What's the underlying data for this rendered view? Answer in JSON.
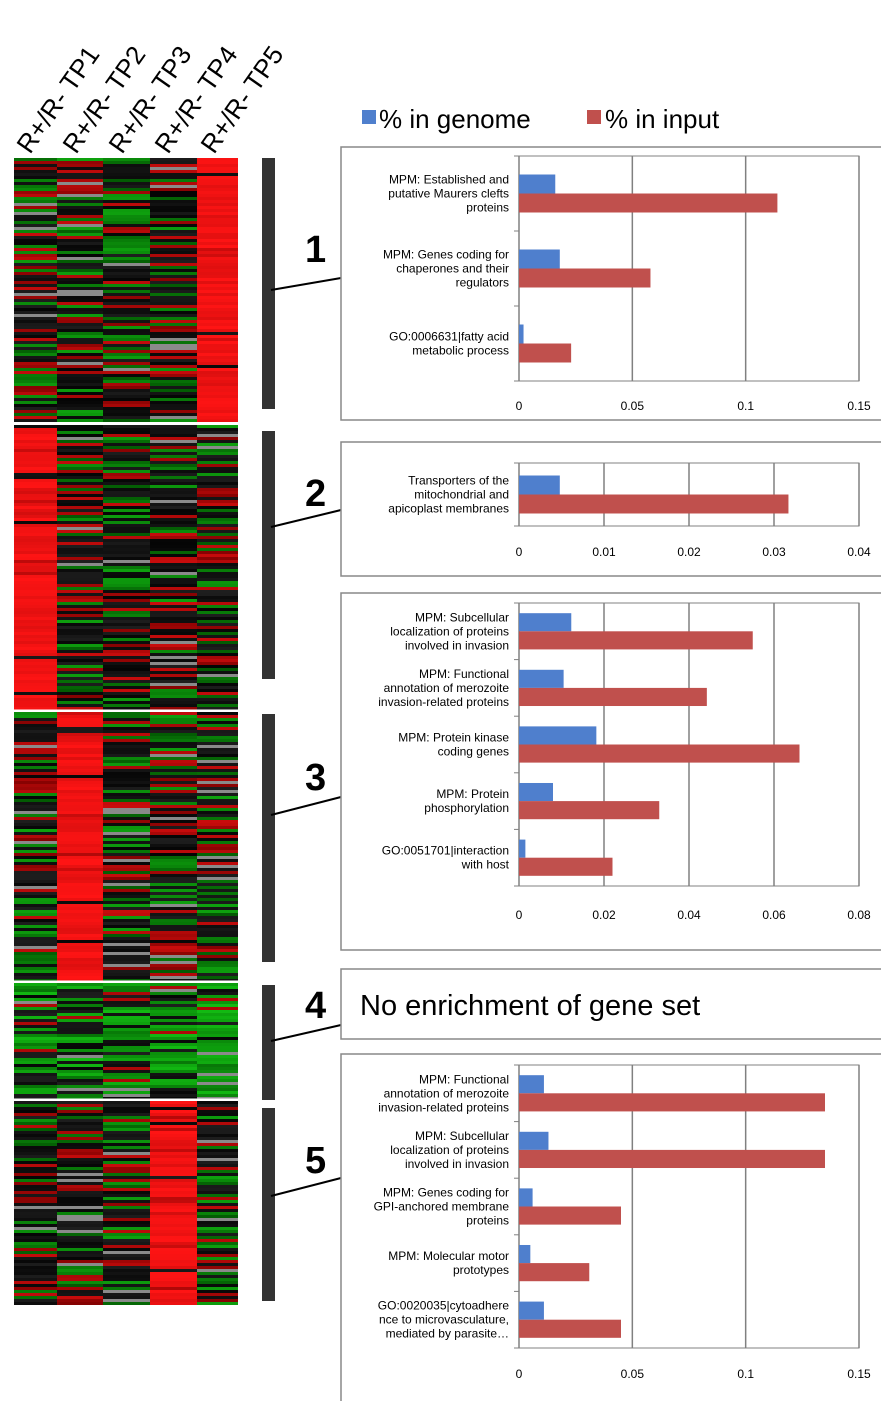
{
  "heatmap": {
    "columns": [
      "R+/R-  TP1",
      "R+/R-  TP2",
      "R+/R-  TP3",
      "R+/R-  TP4",
      "R+/R-  TP5"
    ],
    "clusters": [
      {
        "label": "1",
        "high_column": 4
      },
      {
        "label": "2",
        "high_column": 0
      },
      {
        "label": "3",
        "high_column": 1
      },
      {
        "label": "4",
        "high_column": -1
      },
      {
        "label": "5",
        "high_column": 3
      }
    ],
    "colors": {
      "up": "#ee1c1c",
      "down": "#2fb52f",
      "neutral": "#0a0a0a",
      "missing": "#8a8a8a"
    }
  },
  "legend": {
    "genome_label": "% in genome",
    "input_label": "% in input",
    "genome_color": "#4f7fcd",
    "input_color": "#c0504d"
  },
  "no_enrichment_text": "No enrichment of gene set",
  "chart_data": [
    {
      "type": "bar",
      "orientation": "horizontal",
      "cluster": "1",
      "categories": [
        [
          "MPM: Established and",
          "putative Maurers clefts",
          "proteins"
        ],
        [
          "MPM: Genes coding for",
          "chaperones and their",
          "regulators"
        ],
        [
          "GO:0006631|fatty acid",
          "metabolic process"
        ]
      ],
      "series": [
        {
          "name": "% in genome",
          "values": [
            0.016,
            0.018,
            0.002
          ]
        },
        {
          "name": "% in input",
          "values": [
            0.114,
            0.058,
            0.023
          ]
        }
      ],
      "xlim": [
        0,
        0.15
      ],
      "xticks": [
        "0",
        "0.05",
        "0.1",
        "0.15"
      ]
    },
    {
      "type": "bar",
      "orientation": "horizontal",
      "cluster": "2",
      "categories": [
        [
          "Transporters of the",
          "mitochondrial and",
          "apicoplast membranes"
        ]
      ],
      "series": [
        {
          "name": "% in genome",
          "values": [
            0.0048
          ]
        },
        {
          "name": "% in input",
          "values": [
            0.0317
          ]
        }
      ],
      "xlim": [
        0,
        0.04
      ],
      "xticks": [
        "0",
        "0.01",
        "0.02",
        "0.03",
        "0.04"
      ]
    },
    {
      "type": "bar",
      "orientation": "horizontal",
      "cluster": "3",
      "categories": [
        [
          "MPM: Subcellular",
          "localization of proteins",
          "involved in invasion"
        ],
        [
          "MPM: Functional",
          "annotation of merozoite",
          "invasion-related proteins"
        ],
        [
          "MPM: Protein kinase",
          "coding genes"
        ],
        [
          "MPM: Protein",
          "phosphorylation"
        ],
        [
          "GO:0051701|interaction",
          "with host"
        ]
      ],
      "series": [
        {
          "name": "% in genome",
          "values": [
            0.0123,
            0.0105,
            0.0182,
            0.008,
            0.0015
          ]
        },
        {
          "name": "% in input",
          "values": [
            0.055,
            0.0442,
            0.066,
            0.033,
            0.022
          ]
        }
      ],
      "xlim": [
        0,
        0.08
      ],
      "xticks": [
        "0",
        "0.02",
        "0.04",
        "0.06",
        "0.08"
      ]
    },
    {
      "type": "bar",
      "orientation": "horizontal",
      "cluster": "5",
      "categories": [
        [
          "MPM: Functional",
          "annotation of merozoite",
          "invasion-related proteins"
        ],
        [
          "MPM: Subcellular",
          "localization of proteins",
          "involved in invasion"
        ],
        [
          "MPM: Genes coding for",
          "GPI-anchored membrane",
          "proteins"
        ],
        [
          "MPM: Molecular motor",
          "prototypes"
        ],
        [
          "GO:0020035|cytoadhere",
          "nce to microvasculature,",
          "mediated by parasite…"
        ]
      ],
      "series": [
        {
          "name": "% in genome",
          "values": [
            0.011,
            0.013,
            0.006,
            0.005,
            0.011
          ]
        },
        {
          "name": "% in input",
          "values": [
            0.135,
            0.135,
            0.045,
            0.031,
            0.045
          ]
        }
      ],
      "xlim": [
        0,
        0.15
      ],
      "xticks": [
        "0",
        "0.05",
        "0.1",
        "0.15"
      ]
    }
  ]
}
